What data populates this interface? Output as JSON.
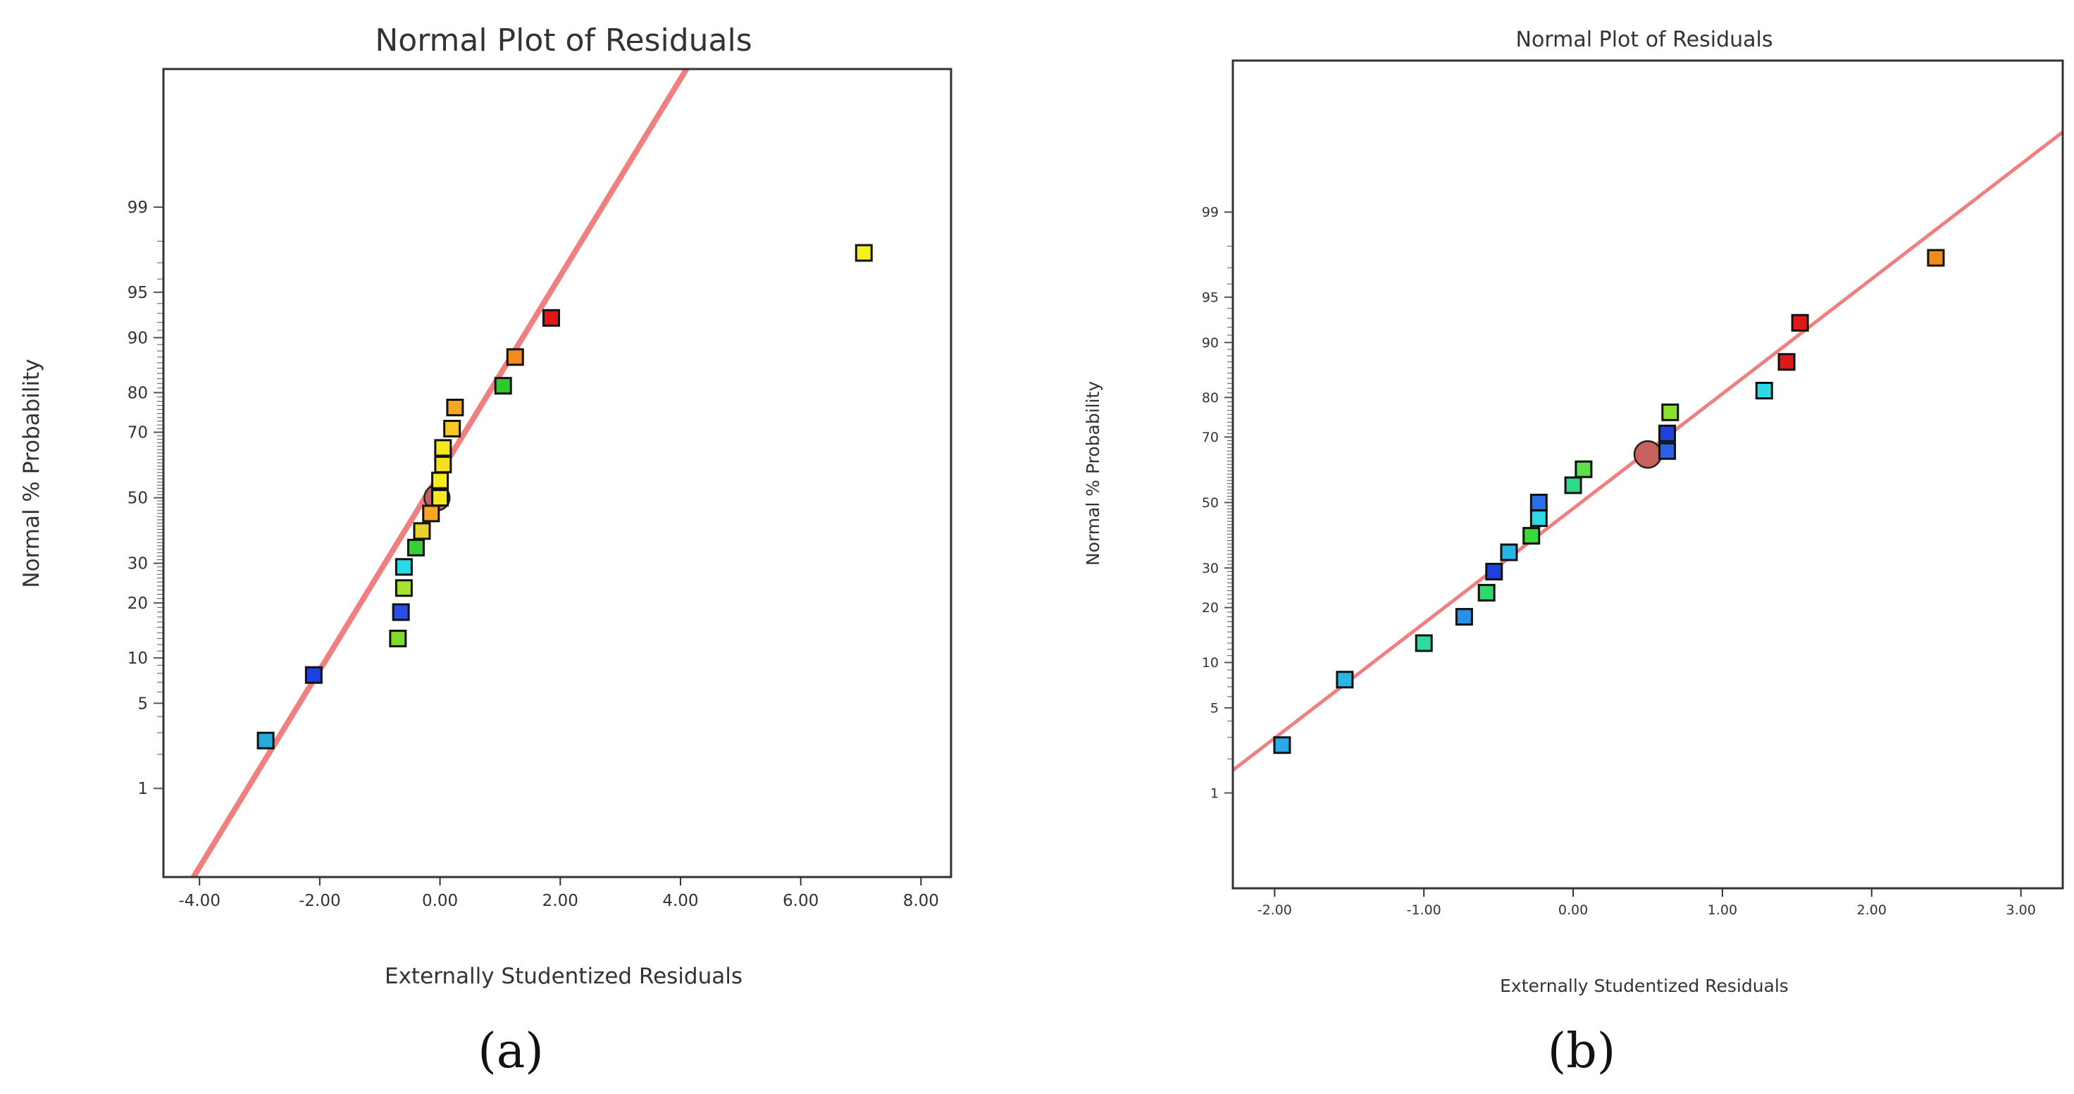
{
  "chart_data": [
    {
      "type": "scatter",
      "panel_label": "(a)",
      "title": "Normal Plot of Residuals",
      "xlabel": "Externally Studentized Residuals",
      "ylabel": "Normal % Probability",
      "xlim": [
        -4.6,
        8.5
      ],
      "ylim_probability": [
        0.12,
        99.97
      ],
      "x_ticks": [
        -4.0,
        -2.0,
        0.0,
        2.0,
        4.0,
        6.0,
        8.0
      ],
      "x_tick_labels": [
        "-4.00",
        "-2.00",
        "0.00",
        "2.00",
        "4.00",
        "6.00",
        "8.00"
      ],
      "y_ticks": [
        1,
        5,
        10,
        20,
        30,
        50,
        70,
        80,
        90,
        95,
        99
      ],
      "y_tick_labels": [
        "1",
        "5",
        "10",
        "20",
        "30",
        "50",
        "70",
        "80",
        "90",
        "95",
        "99"
      ],
      "fit_line": {
        "x": [
          -4.1,
          4.1
        ],
        "p": [
          0.12,
          99.97
        ],
        "color": "#f08080"
      },
      "highlight_point": {
        "x": -0.05,
        "p": 50,
        "color": "#c06060"
      },
      "points": [
        {
          "x": -2.9,
          "p": 2.6,
          "color": "#29a9d6"
        },
        {
          "x": -2.1,
          "p": 7.8,
          "color": "#1f3fe0"
        },
        {
          "x": -0.7,
          "p": 13.0,
          "color": "#7fd92f"
        },
        {
          "x": -0.65,
          "p": 18.0,
          "color": "#2a4fe6"
        },
        {
          "x": -0.6,
          "p": 23.5,
          "color": "#a6e22e"
        },
        {
          "x": -0.6,
          "p": 29.0,
          "color": "#2dd9e6"
        },
        {
          "x": -0.4,
          "p": 34.5,
          "color": "#35d035"
        },
        {
          "x": -0.3,
          "p": 39.5,
          "color": "#e6d22a"
        },
        {
          "x": -0.15,
          "p": 45.0,
          "color": "#f5a623"
        },
        {
          "x": 0.0,
          "p": 50.0,
          "color": "#f5e81f"
        },
        {
          "x": 0.0,
          "p": 55.5,
          "color": "#f5ec1f"
        },
        {
          "x": 0.05,
          "p": 60.5,
          "color": "#f5e01f"
        },
        {
          "x": 0.05,
          "p": 65.5,
          "color": "#f5e61f"
        },
        {
          "x": 0.2,
          "p": 71.0,
          "color": "#f5c823"
        },
        {
          "x": 0.25,
          "p": 76.5,
          "color": "#f5a623"
        },
        {
          "x": 1.05,
          "p": 81.5,
          "color": "#2dc92d"
        },
        {
          "x": 1.25,
          "p": 87.0,
          "color": "#f08c1e"
        },
        {
          "x": 1.85,
          "p": 92.5,
          "color": "#e01818"
        },
        {
          "x": 7.05,
          "p": 97.5,
          "color": "#f5ef1f"
        }
      ]
    },
    {
      "type": "scatter",
      "panel_label": "(b)",
      "title": "Normal Plot of Residuals",
      "xlabel": "Externally Studentized Residuals",
      "ylabel": "Normal % Probability",
      "xlim": [
        -2.28,
        3.28
      ],
      "ylim_probability": [
        0.1,
        99.98
      ],
      "x_ticks": [
        -2.0,
        -1.0,
        0.0,
        1.0,
        2.0,
        3.0
      ],
      "x_tick_labels": [
        "-2.00",
        "-1.00",
        "0.00",
        "1.00",
        "2.00",
        "3.00"
      ],
      "y_ticks": [
        1,
        5,
        10,
        20,
        30,
        50,
        70,
        80,
        90,
        95,
        99
      ],
      "y_tick_labels": [
        "1",
        "5",
        "10",
        "20",
        "30",
        "50",
        "70",
        "80",
        "90",
        "95",
        "99"
      ],
      "fit_line": {
        "x": [
          -2.28,
          3.28
        ],
        "p": [
          1.6,
          99.85
        ],
        "color": "#f08080"
      },
      "highlight_point": {
        "x": 0.5,
        "p": 65.0,
        "color": "#c86060"
      },
      "points": [
        {
          "x": -1.95,
          "p": 2.6,
          "color": "#29a9e6"
        },
        {
          "x": -1.53,
          "p": 7.8,
          "color": "#29b6e6"
        },
        {
          "x": -1.0,
          "p": 13.0,
          "color": "#2fd9a0"
        },
        {
          "x": -0.73,
          "p": 18.0,
          "color": "#2a8fe6"
        },
        {
          "x": -0.58,
          "p": 23.5,
          "color": "#2ed96a"
        },
        {
          "x": -0.53,
          "p": 29.0,
          "color": "#1f3fe0"
        },
        {
          "x": -0.43,
          "p": 34.5,
          "color": "#29b6e6"
        },
        {
          "x": -0.28,
          "p": 39.5,
          "color": "#3ad93a"
        },
        {
          "x": -0.23,
          "p": 45.0,
          "color": "#2dd9e6"
        },
        {
          "x": -0.23,
          "p": 50.0,
          "color": "#2a6fe6"
        },
        {
          "x": 0.0,
          "p": 55.5,
          "color": "#2ed98a"
        },
        {
          "x": 0.07,
          "p": 60.5,
          "color": "#5fe04a"
        },
        {
          "x": 0.63,
          "p": 66.0,
          "color": "#2a5fe6"
        },
        {
          "x": 0.63,
          "p": 71.0,
          "color": "#1f3fe0"
        },
        {
          "x": 0.65,
          "p": 76.5,
          "color": "#8ce02e"
        },
        {
          "x": 1.28,
          "p": 81.5,
          "color": "#2dd9e6"
        },
        {
          "x": 1.43,
          "p": 87.0,
          "color": "#e01818"
        },
        {
          "x": 1.52,
          "p": 92.5,
          "color": "#e01818"
        },
        {
          "x": 2.43,
          "p": 97.5,
          "color": "#f08c1e"
        }
      ]
    }
  ]
}
